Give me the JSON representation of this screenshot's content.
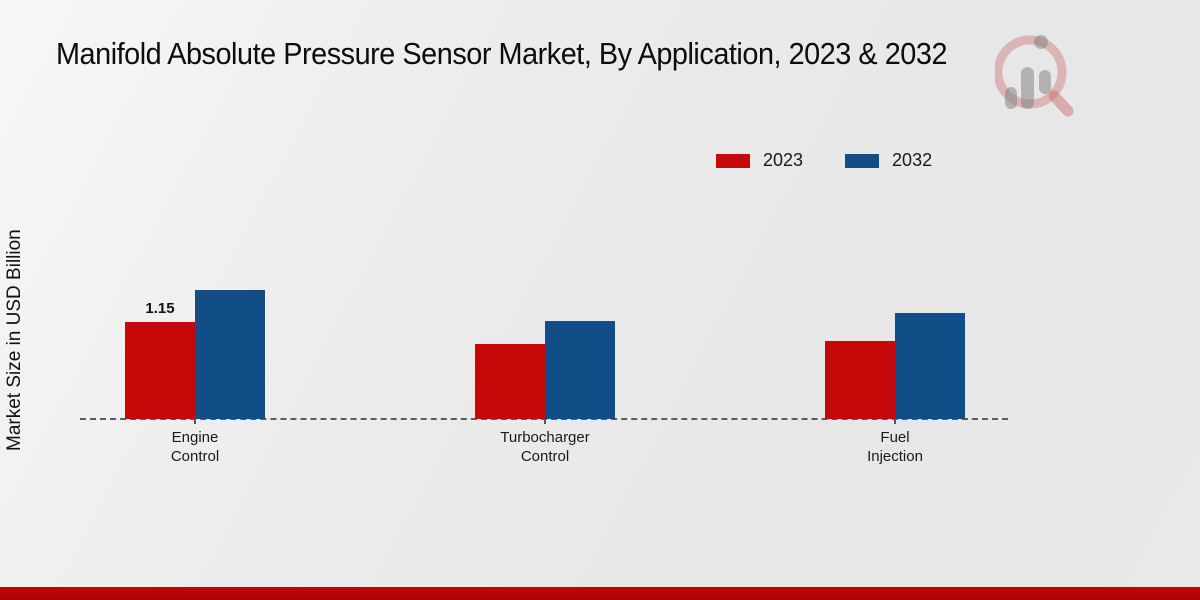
{
  "page": {
    "title": "Manifold Absolute Pressure Sensor Market, By Application, 2023 & 2032"
  },
  "chart_data": {
    "type": "bar",
    "title": "Manifold Absolute Pressure Sensor Market, By Application, 2023 & 2032",
    "xlabel": "",
    "ylabel": "Market Size in USD Billion",
    "categories": [
      "Engine Control",
      "Turbocharger Control",
      "Fuel Injection"
    ],
    "series": [
      {
        "name": "2023",
        "color": "#c70808",
        "values": [
          1.15,
          0.89,
          0.93
        ],
        "point_labels": [
          "1.15",
          null,
          null
        ]
      },
      {
        "name": "2032",
        "color": "#114e87",
        "values": [
          1.53,
          1.16,
          1.26
        ],
        "point_labels": [
          null,
          null,
          null
        ]
      }
    ],
    "legend_position": "top-right",
    "grid": false,
    "baseline_value": 0,
    "axis_style": "dashed-zero-line",
    "ylim": [
      0,
      1.6
    ]
  },
  "footer": {
    "bar_color_top": "#c00606",
    "bar_color_bottom": "#ab0505"
  }
}
